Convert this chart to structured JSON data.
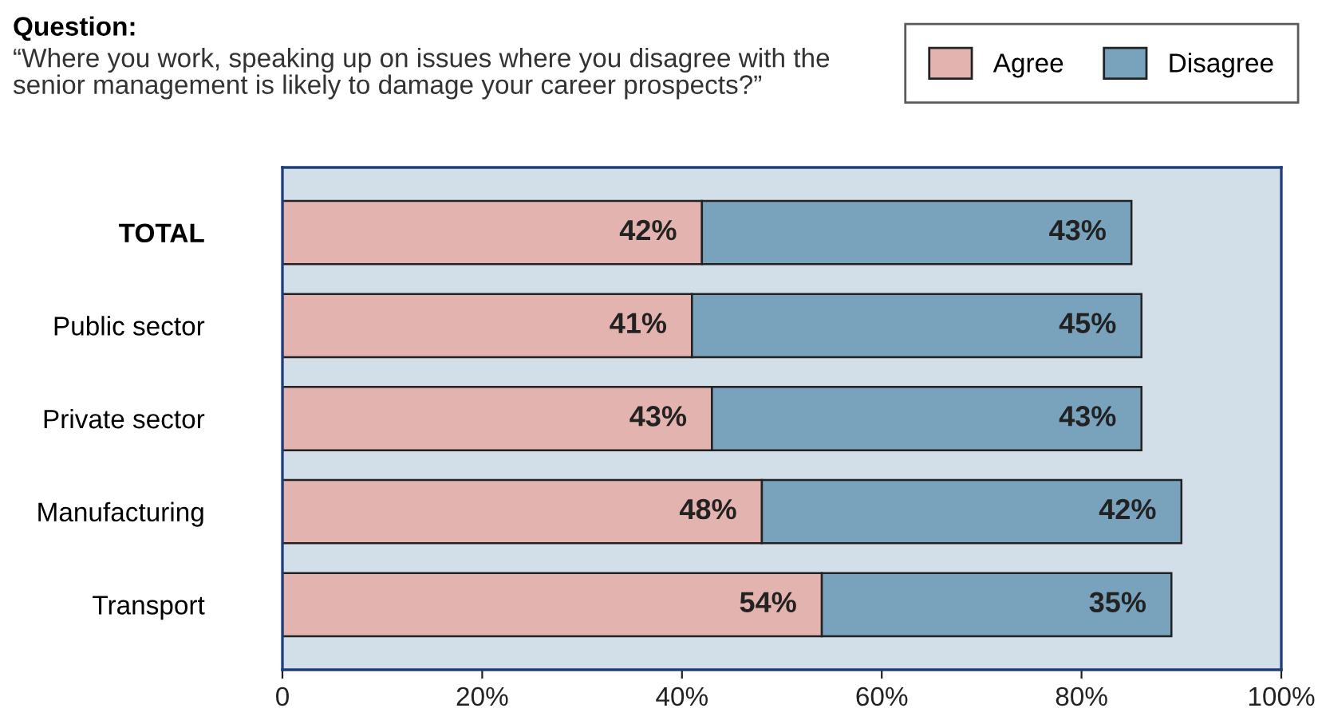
{
  "chart_data": {
    "type": "bar",
    "orientation": "horizontal",
    "stacked": true,
    "title": "Question:",
    "subtitle": "“Where you work, speaking up on issues where you disagree with the\nsenior management is likely to damage your career prospects?”",
    "categories": [
      "TOTAL",
      "Public sector",
      "Private sector",
      "Manufacturing",
      "Transport"
    ],
    "series": [
      {
        "name": "Agree",
        "color": "#e3b4af",
        "values": [
          42,
          41,
          43,
          48,
          54
        ],
        "value_labels": [
          "42%",
          "41%",
          "43%",
          "48%",
          "54%"
        ]
      },
      {
        "name": "Disagree",
        "color": "#79a2bd",
        "values": [
          43,
          45,
          43,
          42,
          35
        ],
        "value_labels": [
          "43%",
          "45%",
          "43%",
          "42%",
          "35%"
        ]
      }
    ],
    "xlim": [
      0,
      100
    ],
    "xticks": [
      0,
      {
        "value": 20,
        "label": "20%"
      },
      {
        "value": 40,
        "label": "40%"
      },
      {
        "value": 60,
        "label": "60%"
      },
      {
        "value": 80,
        "label": "80%"
      },
      {
        "value": 100,
        "label": "100%"
      }
    ],
    "grid": false,
    "legend": "top right"
  }
}
